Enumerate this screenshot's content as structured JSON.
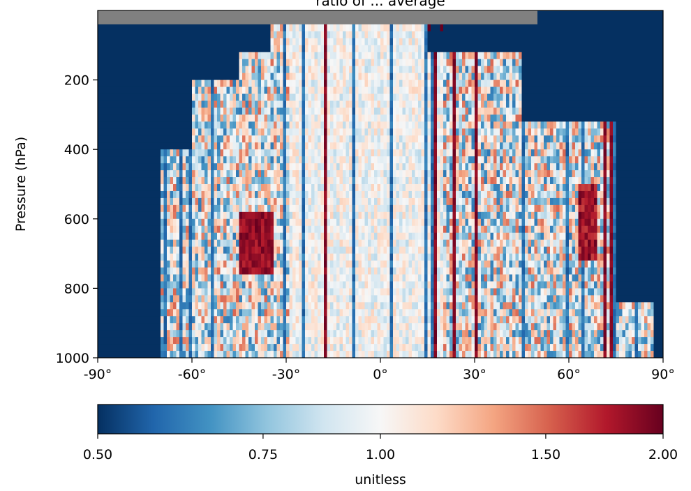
{
  "chart_data": {
    "type": "heatmap",
    "title": "ratio of ... average",
    "xlabel": "",
    "ylabel": "Pressure (hPa)",
    "xlim": [
      -90,
      90
    ],
    "ylim": [
      1000,
      0
    ],
    "x_ticks": [
      -90,
      -60,
      -30,
      0,
      30,
      60,
      90
    ],
    "x_tick_labels": [
      "-90°",
      "-60°",
      "-30°",
      "0°",
      "30°",
      "60°",
      "90°"
    ],
    "y_ticks": [
      200,
      400,
      600,
      800,
      1000
    ],
    "y_tick_labels": [
      "200",
      "400",
      "600",
      "800",
      "1000"
    ],
    "colorbar": {
      "label": "unitless",
      "range": [
        0.5,
        2.0
      ],
      "ticks": [
        "0.50",
        "0.75",
        "1.00",
        "1.50",
        "2.00"
      ],
      "colormap": "RdBu_r",
      "stops": [
        "#053061",
        "#2166ac",
        "#4393c3",
        "#92c5de",
        "#d1e5f0",
        "#f7f7f7",
        "#fddbc7",
        "#f4a582",
        "#d6604d",
        "#b2182b",
        "#67001f"
      ]
    },
    "missing_color": "#808080",
    "background_value": 0.5,
    "description_columns": "latitude columns with finite values roughly between -70° and 85°; values near 1.0 in tropics, mixed elsewhere",
    "highlights": [
      {
        "region": "-45° to -35°, 600-750 hPa",
        "value": 2.0
      },
      {
        "region": "63° to 68°, 500-700 hPa",
        "value": 2.0
      },
      {
        "region": "0° to 5°, upper levels",
        "value": 2.0
      }
    ]
  }
}
